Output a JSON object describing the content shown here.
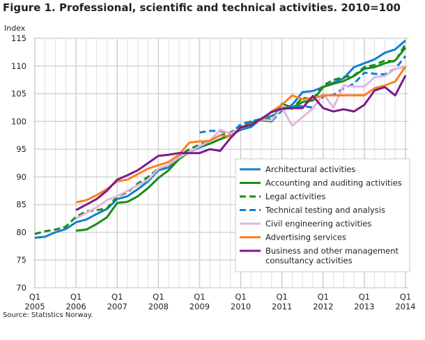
{
  "chart_data": {
    "type": "line",
    "title": "Figure 1. Professional, scientific and technical activities. 2010=100",
    "ylabel": "Index",
    "xlabel": "",
    "ylim": [
      70,
      115
    ],
    "yticks": [
      70,
      75,
      80,
      85,
      90,
      95,
      100,
      105,
      110,
      115
    ],
    "x_start": "2005Q1",
    "x_end": "2014Q1",
    "xticks": [
      {
        "q": "Q1",
        "y": "2005"
      },
      {
        "q": "Q1",
        "y": "2006"
      },
      {
        "q": "Q1",
        "y": "2007"
      },
      {
        "q": "Q1",
        "y": "2008"
      },
      {
        "q": "Q1",
        "y": "2009"
      },
      {
        "q": "Q1",
        "y": "2010"
      },
      {
        "q": "Q1",
        "y": "2011"
      },
      {
        "q": "Q1",
        "y": "2012"
      },
      {
        "q": "Q1",
        "y": "2013"
      },
      {
        "q": "Q1",
        "y": "2014"
      }
    ],
    "grid": true,
    "legend_position": "bottom-right",
    "series": [
      {
        "name": "Architectural activities",
        "color": "#0f7fd4",
        "dashed": false,
        "start": "2005Q1",
        "values": [
          79,
          79.2,
          80,
          80.6,
          81.8,
          82.3,
          83.3,
          84.2,
          86,
          86.5,
          87.8,
          89.2,
          91.2,
          91.7,
          93.5,
          94.5,
          95.3,
          96,
          96.8,
          97.5,
          98.5,
          99,
          100.5,
          101,
          102,
          103,
          105.3,
          105.5,
          106.2,
          107,
          107.8,
          109.8,
          110.5,
          111.2,
          112.4,
          113,
          114.6
        ]
      },
      {
        "name": "Accounting and auditing activities",
        "color": "#1a8c1a",
        "dashed": false,
        "start": "2006Q1",
        "values": [
          80.3,
          80.5,
          81.5,
          82.7,
          85.3,
          85.5,
          86.5,
          88,
          89.8,
          91.2,
          93.2,
          94.5,
          95.5,
          96,
          96.8,
          97.5,
          98.8,
          99.8,
          100.2,
          100,
          103.2,
          102.5,
          103.5,
          103.8,
          106.2,
          106.8,
          107.3,
          108.2,
          109.5,
          109.8,
          110.5,
          111,
          113.3
        ]
      },
      {
        "name": "Legal activities",
        "color": "#1a8c1a",
        "dashed": true,
        "start": "2005Q1",
        "values": [
          79.7,
          80.2,
          80.5,
          81,
          82.8,
          83.8,
          84,
          84.3,
          86.5,
          87.2,
          88.8,
          90,
          91.5,
          92,
          93.8,
          95,
          95.8,
          96.5,
          97.5,
          98,
          99,
          100,
          100.2,
          100.5,
          102.5,
          102.3,
          104.3,
          104,
          106.5,
          107.5,
          108,
          108.3,
          109.8,
          110.2,
          111,
          110.8,
          114
        ]
      },
      {
        "name": "Technical testing and analysis",
        "color": "#0f7fd4",
        "dashed": true,
        "start": "2009Q1",
        "values": [
          98,
          98.3,
          98.3,
          97.8,
          99.5,
          100,
          100.5,
          100,
          102,
          102.7,
          102.8,
          102.5,
          104.5,
          104.8,
          106,
          106.8,
          108.8,
          108.6,
          108.5,
          109.5,
          111.8
        ]
      },
      {
        "name": "Civil engineering activities",
        "color": "#e2b6e2",
        "dashed": false,
        "start": "2006Q1",
        "values": [
          82.5,
          83.5,
          84.5,
          85.8,
          86.5,
          87.5,
          88.5,
          89.5,
          91.5,
          92.2,
          93.5,
          94.5,
          95.5,
          96.5,
          98.5,
          97.8,
          98.8,
          99.5,
          100.3,
          100.2,
          102.5,
          99.2,
          100.8,
          102.3,
          105,
          102.5,
          106.5,
          106.3,
          106.3,
          108,
          108.2,
          109.5,
          109.8
        ]
      },
      {
        "name": "Advertising services",
        "color": "#ff7f1e",
        "dashed": false,
        "start": "2006Q1",
        "values": [
          85.4,
          85.8,
          86.7,
          87.8,
          89.2,
          89.5,
          90.5,
          91.5,
          92.1,
          92.7,
          94,
          96.2,
          96.4,
          96.5,
          97.5,
          97.3,
          98.8,
          99.5,
          100.3,
          101.8,
          103,
          104.7,
          104,
          104.2,
          104.7,
          104.7,
          104.7,
          104.7,
          104.7,
          106,
          106.5,
          107.2,
          109.9
        ]
      },
      {
        "name": "Business and other management consultancy activities",
        "legend_lines": [
          "Business and other management",
          "consultancy activities"
        ],
        "color": "#7b1a8c",
        "dashed": false,
        "start": "2006Q1",
        "values": [
          84,
          85,
          86,
          87.5,
          89.5,
          90.3,
          91.2,
          92.5,
          93.8,
          94,
          94.3,
          94.3,
          94.3,
          95,
          94.7,
          97,
          98.9,
          99.4,
          100.5,
          101.7,
          102.3,
          102.4,
          102.4,
          104.6,
          102.4,
          101.8,
          102.2,
          101.8,
          103,
          105.6,
          106.2,
          104.7,
          108.3
        ]
      }
    ],
    "source": "Source: Statistics Norway."
  }
}
